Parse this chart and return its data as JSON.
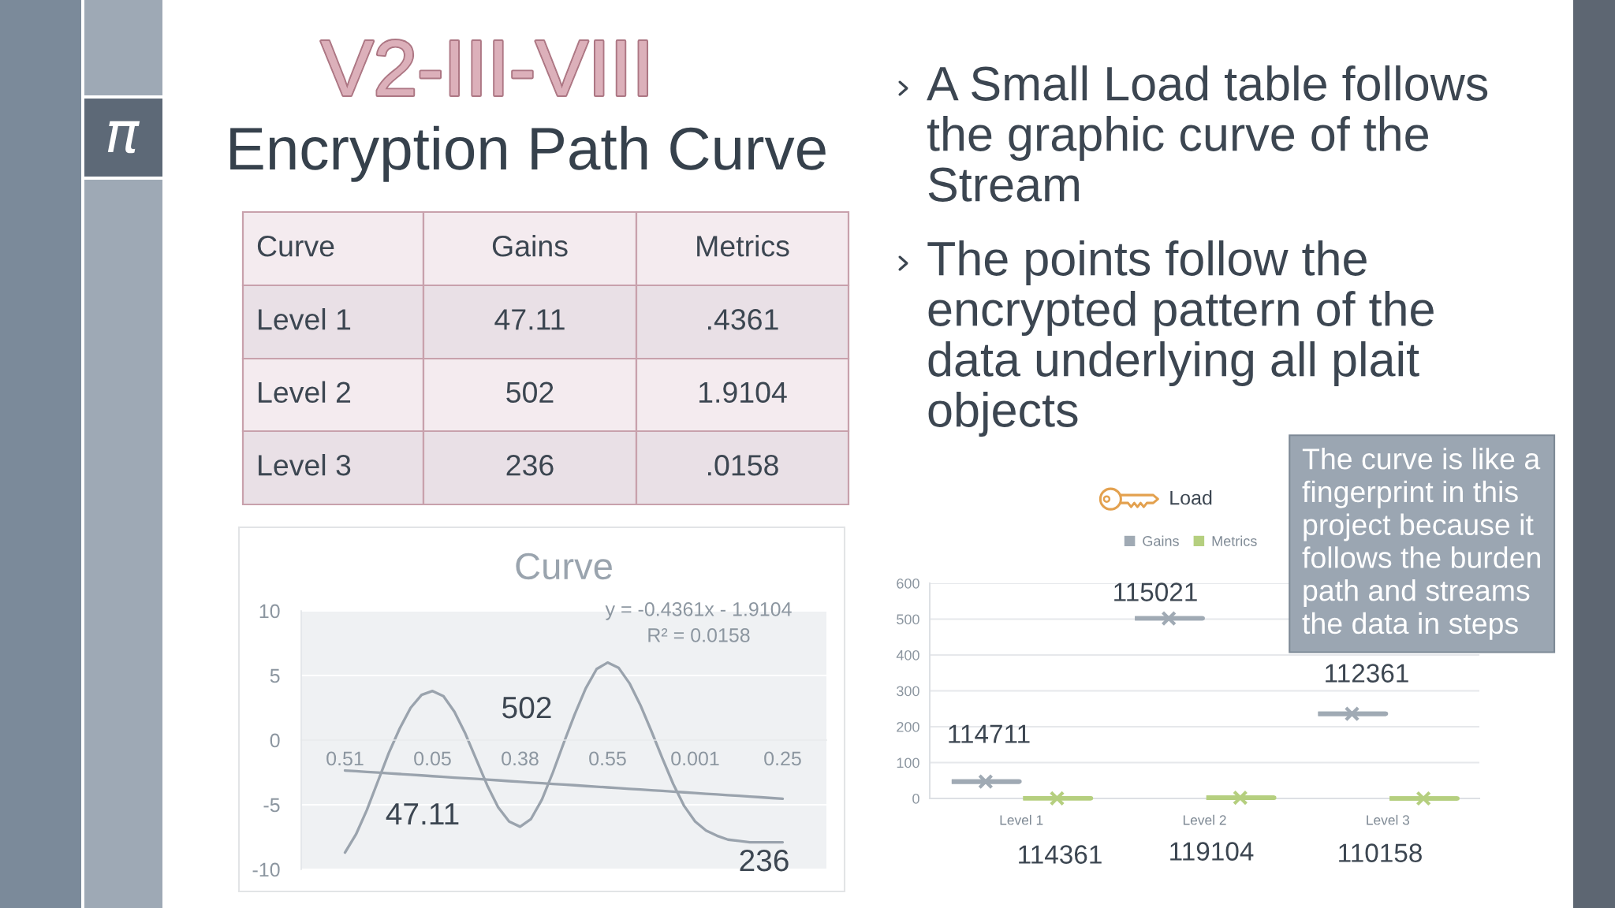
{
  "chart_data": [
    {
      "type": "other",
      "title": "V2-III-VIII",
      "subtitle": "Encryption Path Curve",
      "ylabel": "Curve",
      "categories": [
        "Gains",
        "Metrics"
      ],
      "y_categories": [
        "Level 1",
        "Level 2",
        "Level 3"
      ],
      "cell_labels": [
        [
          "47.11",
          ".4361"
        ],
        [
          "502",
          "1.9104"
        ],
        [
          "236",
          ".0158"
        ]
      ]
    },
    {
      "type": "other",
      "annotations": [
        "A Small Load table follows the graphic curve of the Stream",
        "The points follow the encrypted pattern of the data underlying all plait objects"
      ]
    },
    {
      "type": "line",
      "title": "Curve",
      "categories": [
        "0.51",
        null,
        null,
        null,
        null,
        null,
        null,
        null,
        "0.05",
        null,
        null,
        null,
        null,
        null,
        null,
        null,
        "0.38",
        null,
        null,
        null,
        null,
        null,
        null,
        null,
        "0.55",
        null,
        null,
        null,
        null,
        null,
        null,
        null,
        "0.001",
        null,
        null,
        null,
        null,
        null,
        null,
        null,
        "0.25"
      ],
      "series": [
        {
          "color": "#9aa3ad",
          "values": [
            -8.7,
            -7.3,
            -5.4,
            -3.2,
            -1.0,
            0.9,
            2.5,
            3.5,
            3.8,
            3.4,
            2.2,
            0.5,
            -1.5,
            -3.5,
            -5.2,
            -6.3,
            -6.7,
            -6.1,
            -4.6,
            -2.5,
            -0.2,
            2.0,
            4.0,
            5.5,
            6.0,
            5.6,
            4.4,
            2.7,
            0.7,
            -1.4,
            -3.4,
            -5.1,
            -6.3,
            -7.0,
            -7.4,
            -7.7,
            -7.8,
            -7.9,
            -7.9,
            -7.9,
            -7.9
          ]
        },
        {
          "color": "#9aa3ad",
          "values": [
            -2.35,
            -2.4,
            -2.46,
            -2.51,
            -2.57,
            -2.62,
            -2.68,
            -2.73,
            -2.79,
            -2.84,
            -2.9,
            -2.95,
            -3.0,
            -3.06,
            -3.11,
            -3.17,
            -3.22,
            -3.28,
            -3.33,
            -3.39,
            -3.44,
            -3.49,
            -3.55,
            -3.6,
            -3.66,
            -3.71,
            -3.77,
            -3.82,
            -3.88,
            -3.93,
            -3.99,
            -4.04,
            -4.09,
            -4.15,
            -4.2,
            -4.26,
            -4.31,
            -4.37,
            -4.42,
            -4.48,
            -4.53
          ]
        }
      ],
      "ylim": [
        -10,
        10
      ],
      "yticks": [
        -10,
        -5,
        0,
        5,
        10
      ],
      "grid": "y",
      "annotations": [
        "y = -0.4361x - 1.9104",
        "R² = 0.0158",
        "47.11",
        "502",
        "236"
      ]
    },
    {
      "type": "box",
      "categories": [
        "Level 1",
        "Level 2",
        "Level 3"
      ],
      "series": [
        {
          "name": "Gains",
          "color": "#a0aab4",
          "boxes": [
            {
              "low": 47,
              "q1": 47,
              "median": 47,
              "q3": 47,
              "high": 47,
              "mean": 47
            },
            {
              "low": 502,
              "q1": 502,
              "median": 502,
              "q3": 502,
              "high": 502,
              "mean": 502
            },
            {
              "low": 236,
              "q1": 236,
              "median": 236,
              "q3": 236,
              "high": 236,
              "mean": 236
            }
          ]
        },
        {
          "name": "Metrics",
          "color": "#b5cf7f",
          "boxes": [
            {
              "low": 0.4,
              "q1": 0.4,
              "median": 0.4,
              "q3": 0.4,
              "high": 0.4,
              "mean": 0.4
            },
            {
              "low": 1.9,
              "q1": 1.9,
              "median": 1.9,
              "q3": 1.9,
              "high": 1.9,
              "mean": 1.9
            },
            {
              "low": 0.02,
              "q1": 0.02,
              "median": 0.02,
              "q3": 0.02,
              "high": 0.02,
              "mean": 0.02
            }
          ]
        }
      ],
      "legend": "top",
      "legend_title": "Load",
      "ylim": [
        0,
        600
      ],
      "yticks": [
        0,
        100,
        200,
        300,
        400,
        500,
        600
      ],
      "grid": "y",
      "annotations": [
        "114711",
        "115021",
        "112361",
        "114361",
        "119104",
        "110158",
        "The curve is like a fingerprint in this project because it follows the burden path and streams the data in steps"
      ]
    }
  ]
}
